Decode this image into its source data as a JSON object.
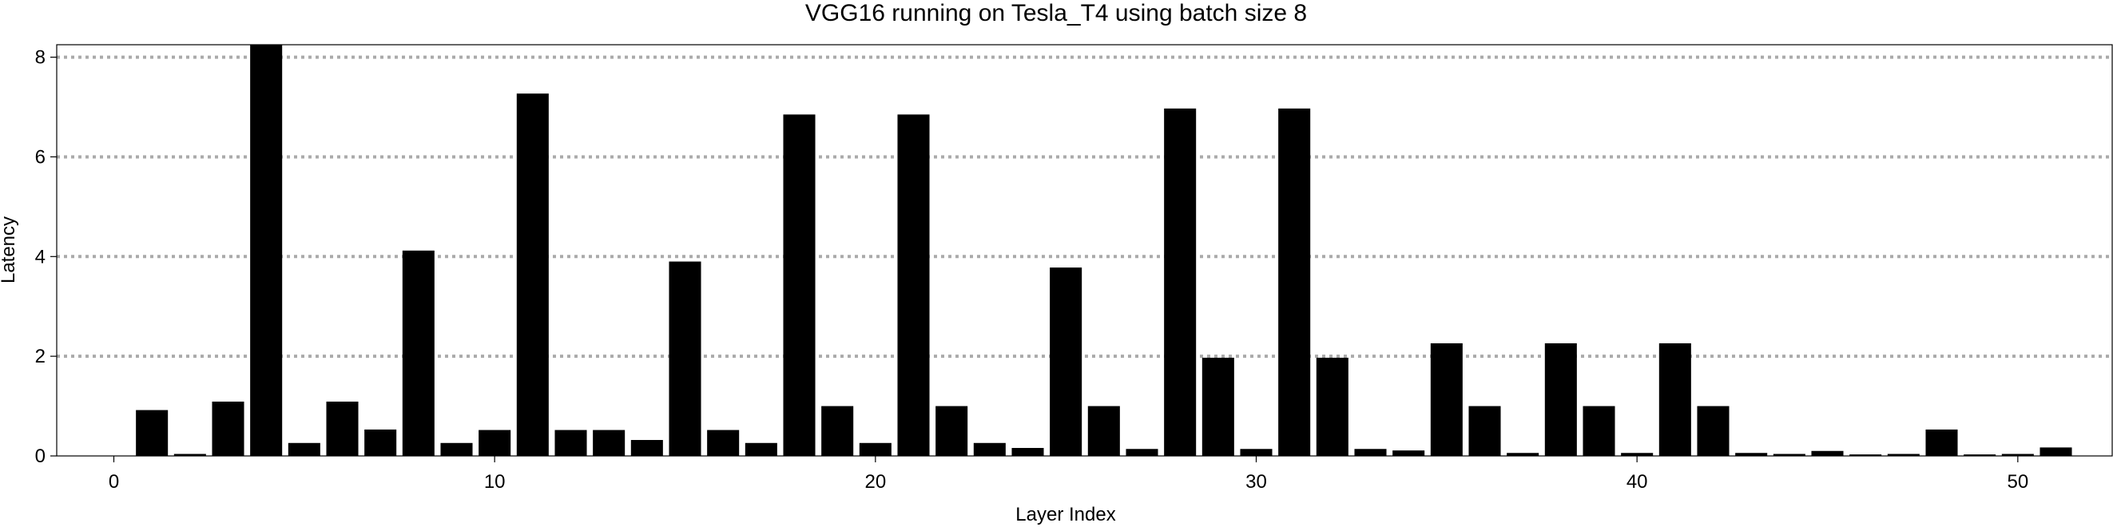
{
  "chart_data": {
    "type": "bar",
    "title": "VGG16 running on Tesla_T4 using batch size 8",
    "xlabel": "Layer Index",
    "ylabel": "Latency",
    "xlim": [
      -1.5,
      52.5
    ],
    "ylim": [
      0,
      8.25
    ],
    "xticks": [
      0,
      10,
      20,
      30,
      40,
      50
    ],
    "yticks": [
      0,
      2,
      4,
      6,
      8
    ],
    "grid": "horizontal dotted at 2, 4, 6, 8",
    "bar_color": "#000000",
    "grid_color": "#aaaaaa",
    "x": [
      1,
      2,
      3,
      4,
      5,
      6,
      7,
      8,
      9,
      10,
      11,
      12,
      13,
      14,
      15,
      16,
      17,
      18,
      19,
      20,
      21,
      22,
      23,
      24,
      25,
      26,
      27,
      28,
      29,
      30,
      31,
      32,
      33,
      34,
      35,
      36,
      37,
      38,
      39,
      40,
      41,
      42,
      43,
      44,
      45,
      46,
      47,
      48,
      49,
      50,
      51
    ],
    "values": [
      0.92,
      0.04,
      1.09,
      8.25,
      0.26,
      1.09,
      0.53,
      4.12,
      0.26,
      0.52,
      7.27,
      0.52,
      0.52,
      0.32,
      3.9,
      0.52,
      0.26,
      6.85,
      1.0,
      0.26,
      6.85,
      1.0,
      0.26,
      0.16,
      3.78,
      1.0,
      0.14,
      6.97,
      1.97,
      0.14,
      6.97,
      1.97,
      0.14,
      0.11,
      2.26,
      1.0,
      0.06,
      2.26,
      1.0,
      0.06,
      2.26,
      1.0,
      0.06,
      0.04,
      0.1,
      0.03,
      0.04,
      0.53,
      0.03,
      0.04,
      0.17
    ]
  }
}
